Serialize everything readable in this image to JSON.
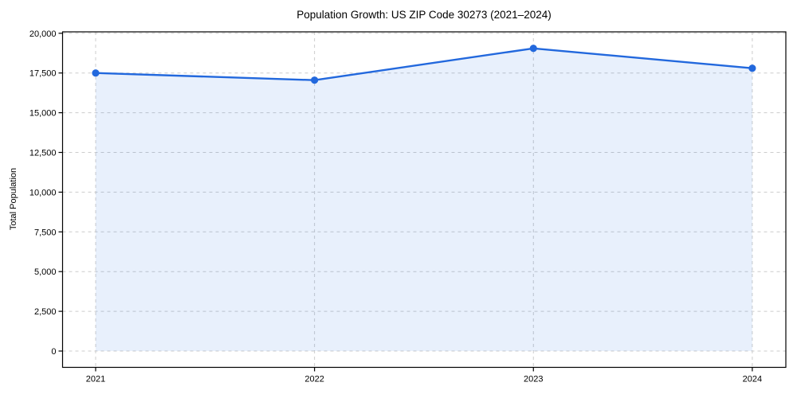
{
  "chart_data": {
    "type": "line",
    "title": "Population Growth: US ZIP Code 30273 (2021–2024)",
    "xlabel": "",
    "ylabel": "Total Population",
    "categories": [
      "2021",
      "2022",
      "2023",
      "2024"
    ],
    "values": [
      17500,
      17050,
      19050,
      17800
    ],
    "ylim": [
      0,
      20000
    ],
    "yticks": [
      0,
      2500,
      5000,
      7500,
      10000,
      12500,
      15000,
      17500,
      20000
    ],
    "ytick_labels": [
      "0",
      "2,500",
      "5,000",
      "7,500",
      "10,000",
      "12,500",
      "15,000",
      "17,500",
      "20,000"
    ],
    "grid": true,
    "grid_style": "dashed",
    "legend": false,
    "marker": "circle",
    "area_fill": true,
    "colors": {
      "line": "#2268dd",
      "marker": "#2268dd",
      "fill": "#2268dd",
      "fill_opacity": 0.1,
      "grid": "#cccccc",
      "axis": "#000000",
      "text": "#000000",
      "background": "#ffffff"
    }
  }
}
